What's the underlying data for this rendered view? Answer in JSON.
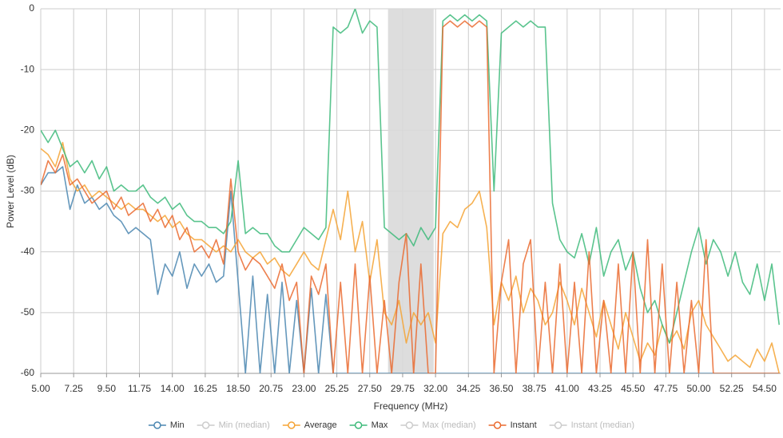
{
  "chart_data": {
    "type": "line",
    "xlabel": "Frequency (MHz)",
    "ylabel": "Power Level (dB)",
    "xlim": [
      5,
      55.6
    ],
    "ylim": [
      -60,
      0
    ],
    "xticks": [
      {
        "value": 5,
        "label": "5.00"
      },
      {
        "value": 7.25,
        "label": "7.25"
      },
      {
        "value": 9.5,
        "label": "9.50"
      },
      {
        "value": 11.75,
        "label": "11.75"
      },
      {
        "value": 14,
        "label": "14.00"
      },
      {
        "value": 16.25,
        "label": "16.25"
      },
      {
        "value": 18.5,
        "label": "18.50"
      },
      {
        "value": 20.75,
        "label": "20.75"
      },
      {
        "value": 23,
        "label": "23.00"
      },
      {
        "value": 25.25,
        "label": "25.25"
      },
      {
        "value": 27.5,
        "label": "27.50"
      },
      {
        "value": 29.75,
        "label": "29.75"
      },
      {
        "value": 32,
        "label": "32.00"
      },
      {
        "value": 34.25,
        "label": "34.25"
      },
      {
        "value": 36.5,
        "label": "36.50"
      },
      {
        "value": 38.75,
        "label": "38.75"
      },
      {
        "value": 41,
        "label": "41.00"
      },
      {
        "value": 43.25,
        "label": "43.25"
      },
      {
        "value": 45.5,
        "label": "45.50"
      },
      {
        "value": 47.75,
        "label": "47.75"
      },
      {
        "value": 50,
        "label": "50.00"
      },
      {
        "value": 52.25,
        "label": "52.25"
      },
      {
        "value": 54.5,
        "label": "54.50"
      }
    ],
    "yticks": [
      0,
      -10,
      -20,
      -30,
      -40,
      -50,
      -60
    ],
    "grid": true,
    "legend": "bottom",
    "shaded_range": [
      28.75,
      31.875
    ],
    "shaded_color": "#d9d9d9",
    "x": [
      5,
      5.5,
      6,
      6.5,
      7,
      7.5,
      8,
      8.5,
      9,
      9.5,
      10,
      10.5,
      11,
      11.5,
      12,
      12.5,
      13,
      13.5,
      14,
      14.5,
      15,
      15.5,
      16,
      16.5,
      17,
      17.5,
      18,
      18.5,
      19,
      19.5,
      20,
      20.5,
      21,
      21.5,
      22,
      22.5,
      23,
      23.5,
      24,
      24.5,
      25,
      25.5,
      26,
      26.5,
      27,
      27.5,
      28,
      28.5,
      29,
      29.5,
      30,
      30.5,
      31,
      31.5,
      32,
      32.5,
      33,
      33.5,
      34,
      34.5,
      35,
      35.5,
      36,
      36.5,
      37,
      37.5,
      38,
      38.5,
      39,
      39.5,
      40,
      40.5,
      41,
      41.5,
      42,
      42.5,
      43,
      43.5,
      44,
      44.5,
      45,
      45.5,
      46,
      46.5,
      47,
      47.5,
      48,
      48.5,
      49,
      49.5,
      50,
      50.5,
      51,
      51.5,
      52,
      52.5,
      53,
      53.5,
      54,
      54.5,
      55,
      55.5
    ],
    "series": [
      {
        "name": "Min",
        "color": "#4a86b0",
        "visible": true,
        "values": [
          -29,
          -27,
          -27,
          -26,
          -33,
          -29,
          -32,
          -31,
          -33,
          -32,
          -34,
          -35,
          -37,
          -36,
          -37,
          -38,
          -47,
          -42,
          -44,
          -40,
          -46,
          -42,
          -44,
          -42,
          -45,
          -44,
          -30,
          -45,
          -60,
          -44,
          -60,
          -47,
          -60,
          -45,
          -60,
          -48,
          -60,
          -46,
          -60,
          -47,
          -60,
          -60,
          -60,
          -60,
          -60,
          -60,
          -60,
          -60,
          -60,
          -60,
          -60,
          -60,
          -60,
          -60,
          -60,
          -60,
          -60,
          -60,
          -60,
          -60,
          -60,
          -60,
          -60,
          -60,
          -60,
          -60,
          -60,
          -60,
          -60,
          -60,
          -60,
          -60,
          -60,
          -60,
          -60,
          -60,
          -60,
          -60,
          -60,
          -60,
          -60,
          -60,
          -60,
          -60,
          -60,
          -60,
          -60,
          -60,
          -60,
          -60,
          -60,
          -60,
          -60,
          -60,
          -60,
          -60,
          -60,
          -60,
          -60,
          -60,
          -60,
          -60
        ]
      },
      {
        "name": "Min (median)",
        "color": "#cccccc",
        "visible": false
      },
      {
        "name": "Average",
        "color": "#f5a334",
        "visible": true,
        "values": [
          -23,
          -24,
          -26,
          -22,
          -28,
          -30,
          -29,
          -31,
          -30,
          -31,
          -32,
          -33,
          -32,
          -33,
          -33,
          -34,
          -35,
          -34,
          -36,
          -35,
          -37,
          -38,
          -38,
          -39,
          -40,
          -39,
          -40,
          -38,
          -40,
          -41,
          -40,
          -42,
          -41,
          -43,
          -44,
          -42,
          -40,
          -42,
          -43,
          -38,
          -33,
          -38,
          -30,
          -40,
          -35,
          -45,
          -38,
          -50,
          -52,
          -48,
          -55,
          -50,
          -52,
          -50,
          -55,
          -37,
          -35,
          -36,
          -33,
          -32,
          -30,
          -36,
          -52,
          -45,
          -48,
          -44,
          -50,
          -46,
          -48,
          -52,
          -50,
          -45,
          -48,
          -52,
          -46,
          -50,
          -54,
          -48,
          -52,
          -56,
          -50,
          -54,
          -58,
          -55,
          -57,
          -52,
          -55,
          -53,
          -56,
          -50,
          -48,
          -52,
          -54,
          -56,
          -58,
          -57,
          -58,
          -59,
          -56,
          -58,
          -55,
          -60
        ]
      },
      {
        "name": "Max",
        "color": "#3dba7a",
        "visible": true,
        "values": [
          -20,
          -22,
          -20,
          -23,
          -26,
          -25,
          -27,
          -25,
          -28,
          -26,
          -30,
          -29,
          -30,
          -30,
          -29,
          -31,
          -32,
          -31,
          -33,
          -32,
          -34,
          -35,
          -35,
          -36,
          -36,
          -37,
          -35,
          -25,
          -37,
          -36,
          -37,
          -37,
          -39,
          -40,
          -40,
          -38,
          -36,
          -37,
          -38,
          -36,
          -3,
          -4,
          -3,
          0,
          -4,
          -2,
          -3,
          -36,
          -37,
          -38,
          -37,
          -39,
          -36,
          -38,
          -36,
          -2,
          -1,
          -2,
          -1,
          -2,
          -1,
          -2,
          -30,
          -4,
          -3,
          -2,
          -3,
          -2,
          -3,
          -3,
          -32,
          -38,
          -40,
          -41,
          -37,
          -42,
          -36,
          -44,
          -40,
          -38,
          -43,
          -40,
          -46,
          -50,
          -48,
          -52,
          -55,
          -50,
          -45,
          -40,
          -36,
          -42,
          -38,
          -40,
          -44,
          -40,
          -45,
          -47,
          -42,
          -48,
          -42,
          -52
        ]
      },
      {
        "name": "Max (median)",
        "color": "#cccccc",
        "visible": false
      },
      {
        "name": "Instant",
        "color": "#ea6a2f",
        "visible": true,
        "values": [
          -29,
          -25,
          -27,
          -24,
          -29,
          -28,
          -30,
          -32,
          -31,
          -30,
          -33,
          -31,
          -34,
          -33,
          -32,
          -35,
          -33,
          -36,
          -34,
          -38,
          -36,
          -40,
          -39,
          -41,
          -38,
          -42,
          -28,
          -40,
          -43,
          -41,
          -42,
          -44,
          -46,
          -42,
          -48,
          -45,
          -60,
          -44,
          -47,
          -42,
          -60,
          -45,
          -60,
          -42,
          -60,
          -44,
          -60,
          -48,
          -60,
          -45,
          -37,
          -60,
          -42,
          -60,
          -60,
          -3,
          -2,
          -3,
          -2,
          -3,
          -2,
          -3,
          -60,
          -45,
          -38,
          -60,
          -42,
          -38,
          -60,
          -45,
          -60,
          -42,
          -60,
          -45,
          -60,
          -40,
          -60,
          -48,
          -60,
          -42,
          -60,
          -40,
          -60,
          -38,
          -60,
          -42,
          -60,
          -45,
          -60,
          -48,
          -60,
          -38,
          -60,
          -60,
          -60,
          -60,
          -60,
          -60,
          -60,
          -60,
          -60,
          -60
        ]
      },
      {
        "name": "Instant (median)",
        "color": "#cccccc",
        "visible": false
      }
    ]
  }
}
